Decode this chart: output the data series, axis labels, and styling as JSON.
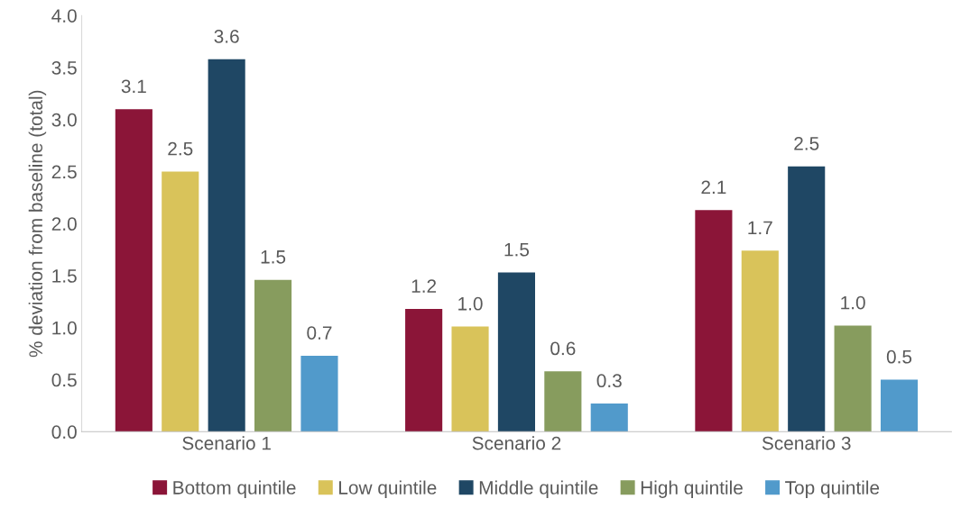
{
  "chart_data": {
    "type": "bar",
    "ylabel": "% deviation from baseline (total)",
    "categories": [
      "Scenario 1",
      "Scenario 2",
      "Scenario 3"
    ],
    "series": [
      {
        "name": "Bottom quintile",
        "color": "#8b1538",
        "values": [
          3.1,
          1.18,
          2.13
        ],
        "value_labels": [
          "3.1",
          "1.2",
          "2.1"
        ]
      },
      {
        "name": "Low quintile",
        "color": "#d9c35a",
        "values": [
          2.5,
          1.01,
          1.74
        ],
        "value_labels": [
          "2.5",
          "1.0",
          "1.7"
        ]
      },
      {
        "name": "Middle quintile",
        "color": "#1f4764",
        "values": [
          3.58,
          1.53,
          2.55
        ],
        "value_labels": [
          "3.6",
          "1.5",
          "2.5"
        ]
      },
      {
        "name": "High quintile",
        "color": "#879c5e",
        "values": [
          1.46,
          0.58,
          1.02
        ],
        "value_labels": [
          "1.5",
          "0.6",
          "1.0"
        ]
      },
      {
        "name": "Top quintile",
        "color": "#519acb",
        "values": [
          0.73,
          0.27,
          0.5
        ],
        "value_labels": [
          "0.7",
          "0.3",
          "0.5"
        ]
      }
    ],
    "ylim": [
      0,
      4.0
    ],
    "yticks": [
      {
        "value": 0,
        "label": "0.0"
      },
      {
        "value": 0.5,
        "label": "0.5"
      },
      {
        "value": 1.0,
        "label": "1.0"
      },
      {
        "value": 1.5,
        "label": "1.5"
      },
      {
        "value": 2.0,
        "label": "2.0"
      },
      {
        "value": 2.5,
        "label": "2.5"
      },
      {
        "value": 3.0,
        "label": "3.0"
      },
      {
        "value": 3.5,
        "label": "3.5"
      },
      {
        "value": 4.0,
        "label": "4.0"
      }
    ],
    "grid": false,
    "legend": "bottom"
  }
}
